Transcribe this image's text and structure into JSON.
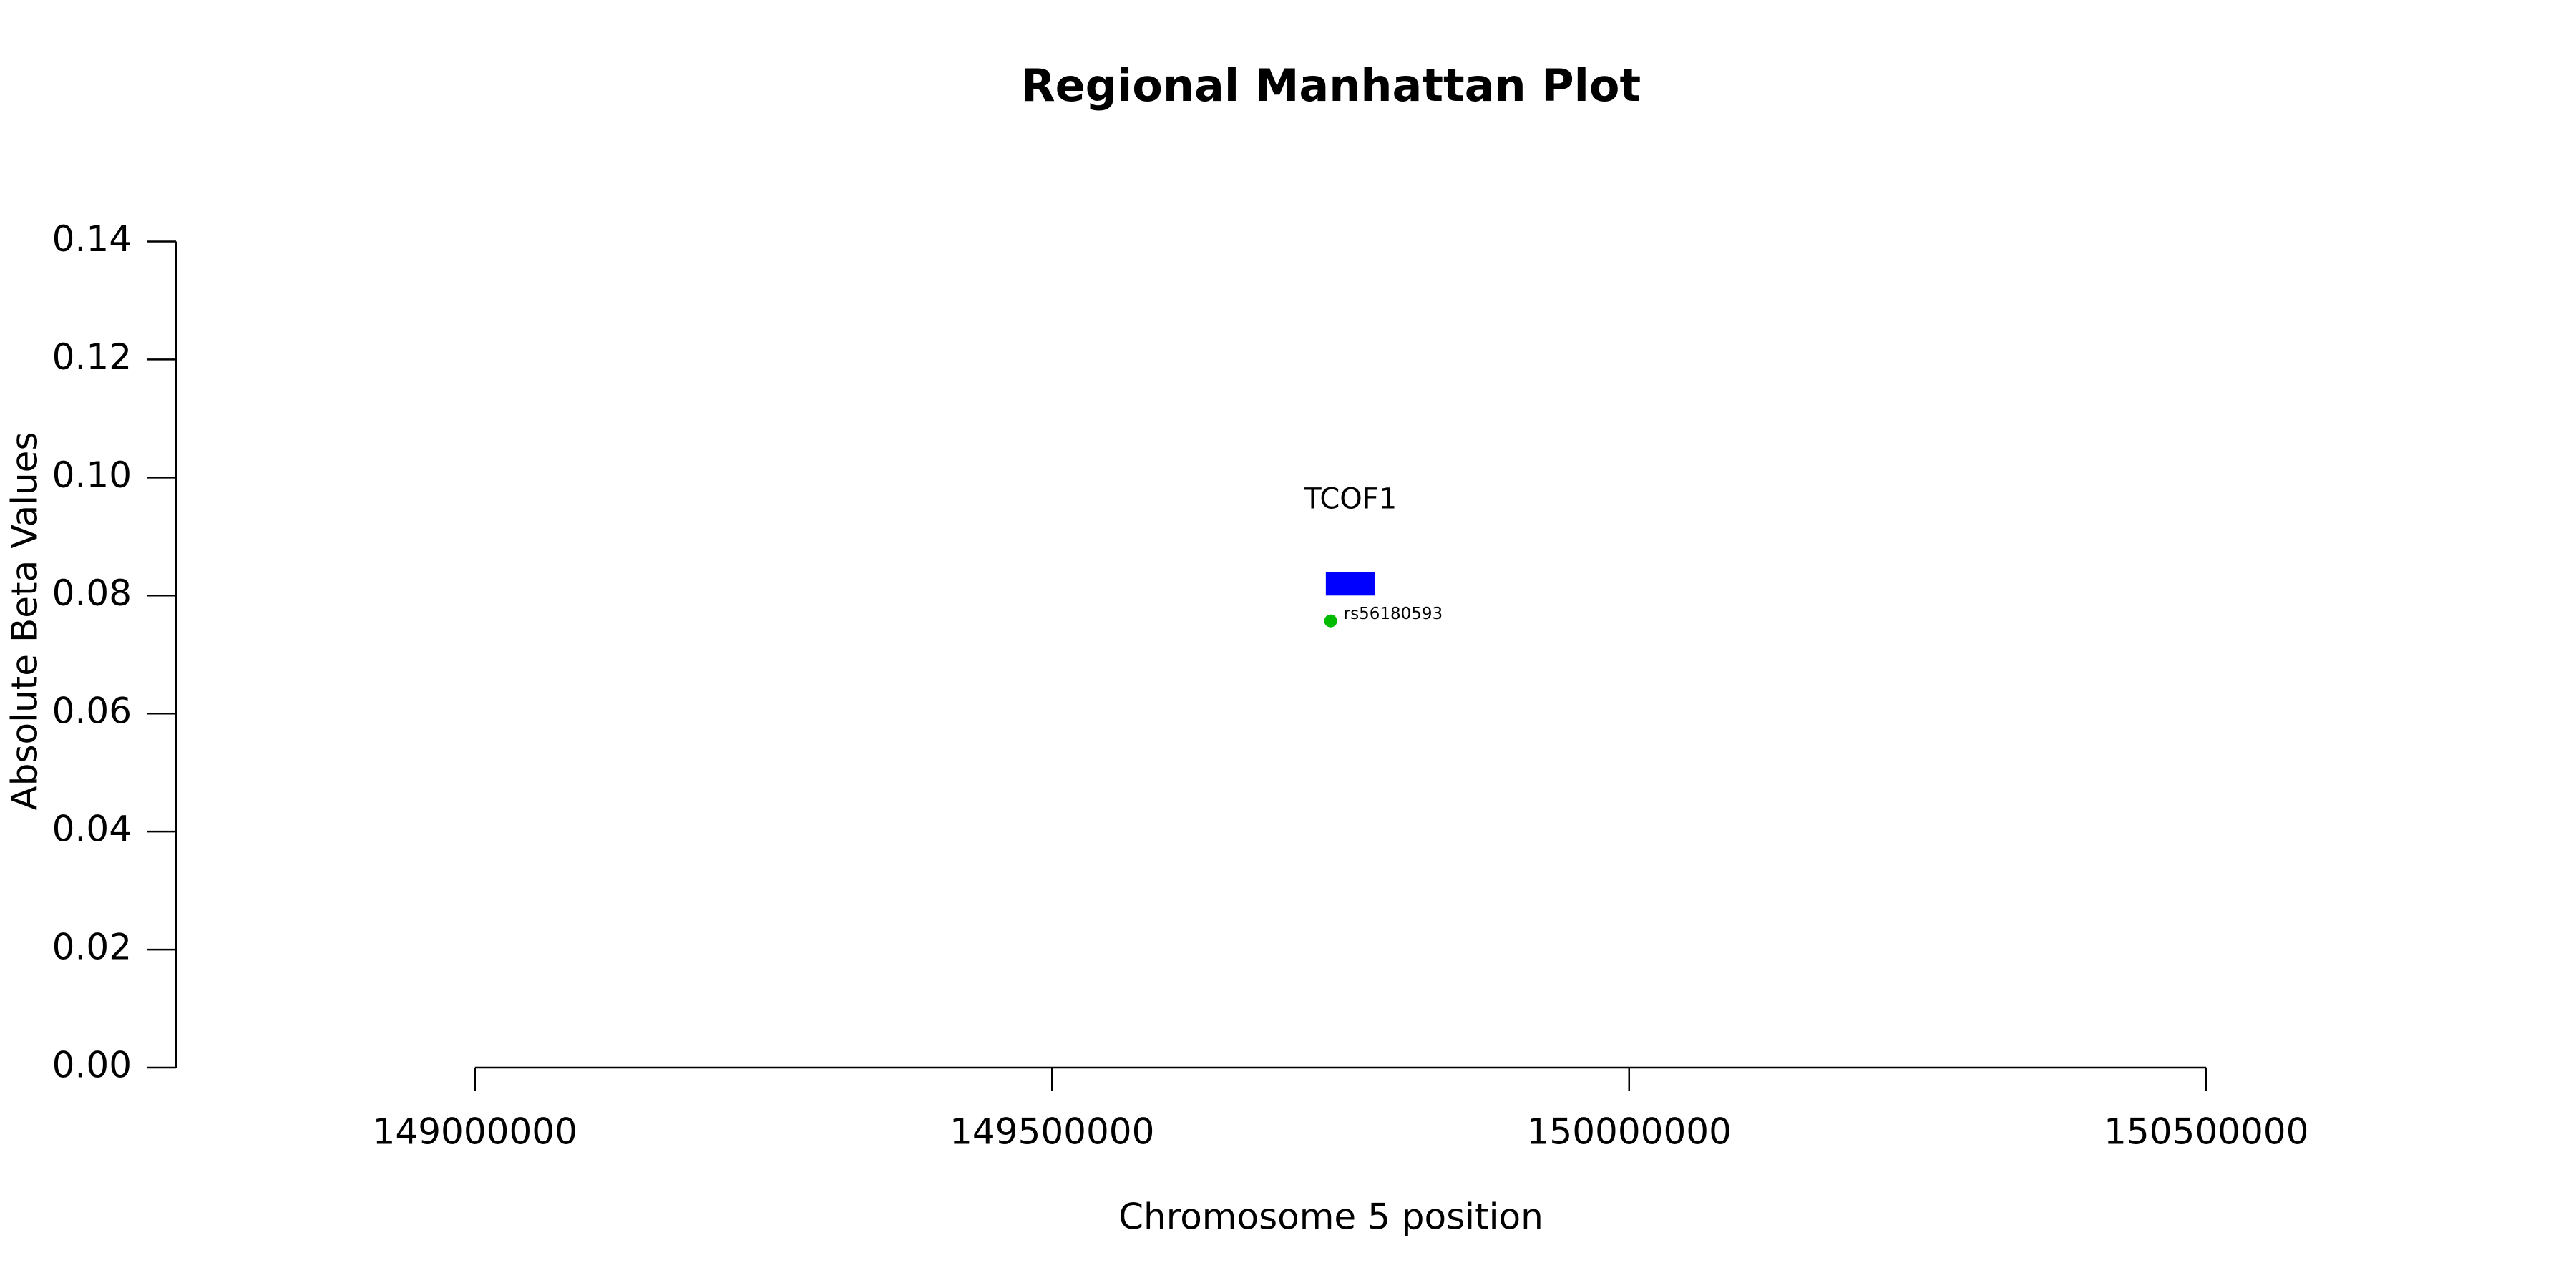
{
  "chart_data": {
    "type": "scatter",
    "title": "Regional Manhattan Plot",
    "x_label": "Chromosome 5 position",
    "y_label": "Absolute Beta Values",
    "x": [
      149741400
    ],
    "values": [
      0.0757
    ],
    "point_labels": [
      "rs56180593"
    ],
    "color": "#00bb00",
    "genes": [
      {
        "name": "TCOF1",
        "start": 149737202,
        "end": 149779871,
        "ymin": 0.08,
        "ymax": 0.084,
        "color": "#0000ff"
      }
    ],
    "xlim": [
      148741000,
      150759000
    ],
    "xticks": [
      149000000,
      149500000,
      150000000,
      150500000
    ],
    "ylim": [
      0,
      0.14
    ],
    "yticks": [
      {
        "value": 0,
        "label": "0.00"
      },
      {
        "value": 0.02,
        "label": "0.02"
      },
      {
        "value": 0.04,
        "label": "0.04"
      },
      {
        "value": 0.06,
        "label": "0.06"
      },
      {
        "value": 0.08,
        "label": "0.08"
      },
      {
        "value": 0.1,
        "label": "0.10"
      },
      {
        "value": 0.12,
        "label": "0.12"
      },
      {
        "value": 0.14,
        "label": "0.14"
      }
    ],
    "grid": false
  }
}
